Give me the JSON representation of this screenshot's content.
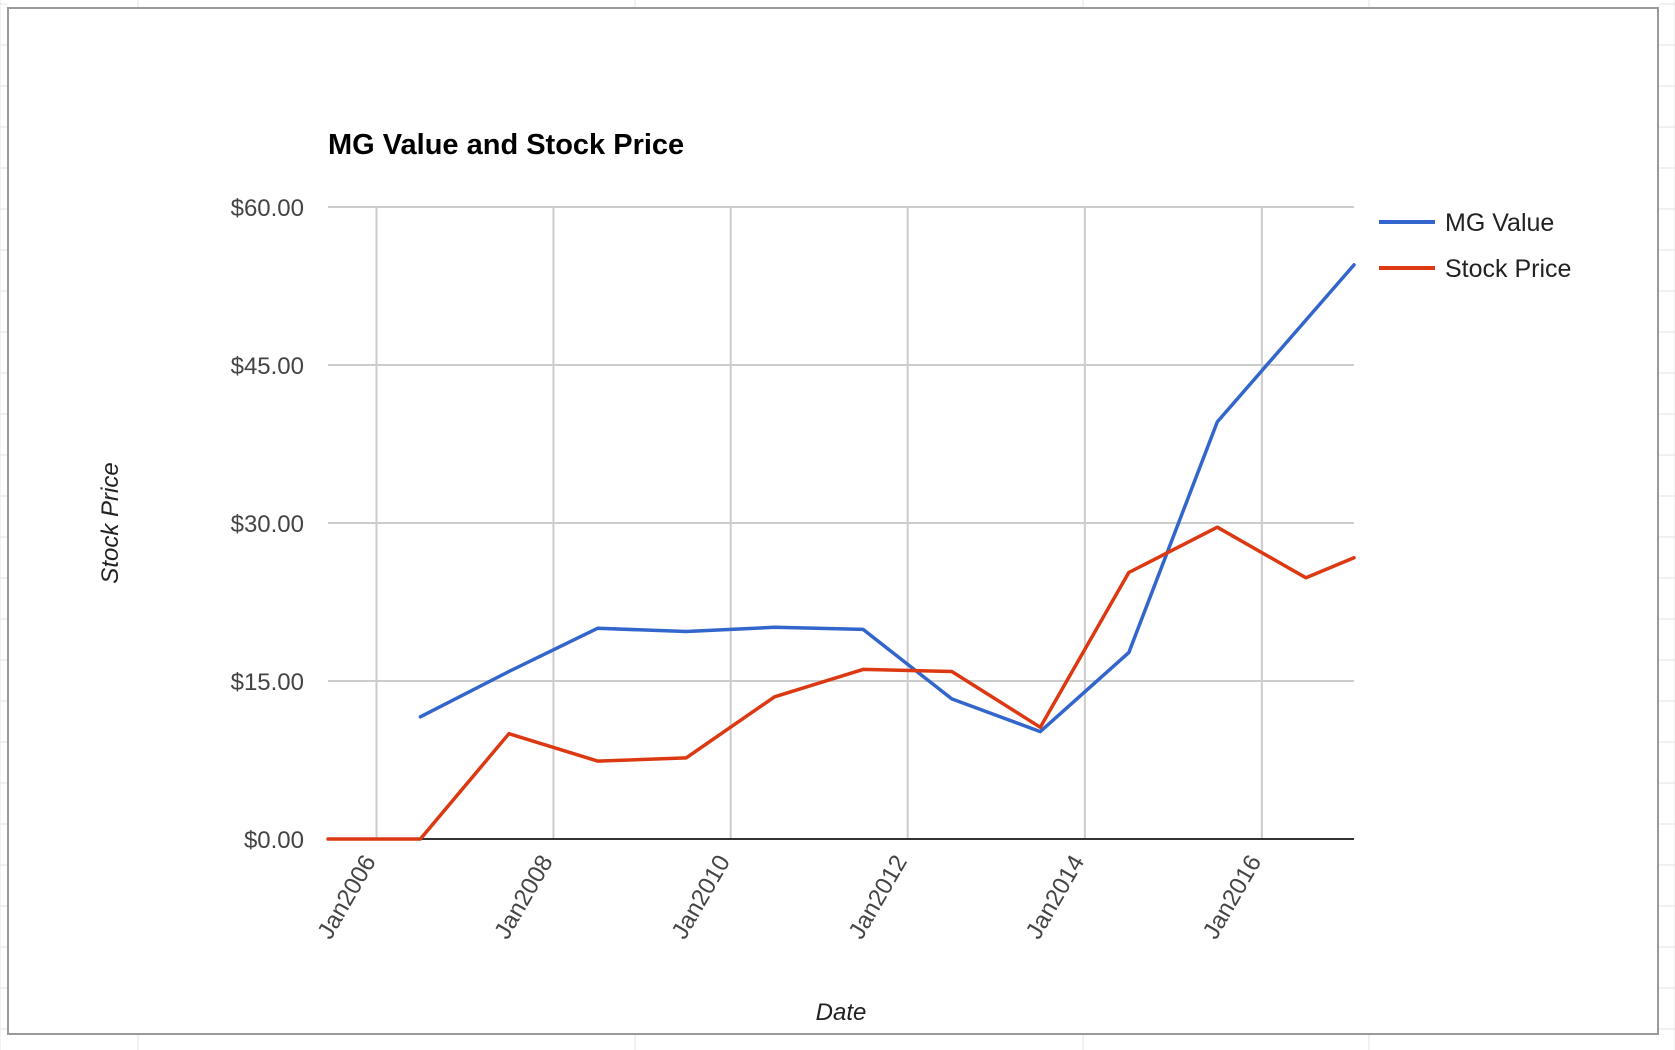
{
  "chart_data": {
    "type": "line",
    "title": "MG Value and Stock Price",
    "xlabel": "Date",
    "ylabel": "Stock Price",
    "x_ticks": [
      "Jan2006",
      "Jan2008",
      "Jan2010",
      "Jan2012",
      "Jan2014",
      "Jan2016"
    ],
    "y_ticks": [
      "$0.00",
      "$15.00",
      "$30.00",
      "$45.00",
      "$60.00"
    ],
    "ylim": [
      0,
      60
    ],
    "xlim": [
      "2005-06-15",
      "2017-01-15"
    ],
    "grid": true,
    "legend_position": "right",
    "series": [
      {
        "name": "MG Value",
        "color": "#3366cc",
        "points": [
          {
            "x": "2006-07-01",
            "y": 11.6
          },
          {
            "x": "2007-07-01",
            "y": 15.9
          },
          {
            "x": "2008-07-01",
            "y": 20.0
          },
          {
            "x": "2009-07-01",
            "y": 19.7
          },
          {
            "x": "2010-07-01",
            "y": 20.1
          },
          {
            "x": "2011-07-01",
            "y": 19.9
          },
          {
            "x": "2012-07-01",
            "y": 13.3
          },
          {
            "x": "2013-07-01",
            "y": 10.2
          },
          {
            "x": "2014-07-01",
            "y": 17.7
          },
          {
            "x": "2015-07-01",
            "y": 39.6
          },
          {
            "x": "2017-01-15",
            "y": 54.5
          }
        ]
      },
      {
        "name": "Stock Price",
        "color": "#dc3912",
        "points": [
          {
            "x": "2005-06-15",
            "y": 0.0
          },
          {
            "x": "2006-07-01",
            "y": 0.0
          },
          {
            "x": "2007-07-01",
            "y": 10.0
          },
          {
            "x": "2008-07-01",
            "y": 7.4
          },
          {
            "x": "2009-07-01",
            "y": 7.7
          },
          {
            "x": "2010-07-01",
            "y": 13.5
          },
          {
            "x": "2011-07-01",
            "y": 16.1
          },
          {
            "x": "2012-07-01",
            "y": 15.9
          },
          {
            "x": "2013-07-01",
            "y": 10.6
          },
          {
            "x": "2014-07-01",
            "y": 25.3
          },
          {
            "x": "2015-07-01",
            "y": 29.6
          },
          {
            "x": "2016-07-01",
            "y": 24.8
          },
          {
            "x": "2017-01-15",
            "y": 26.7
          }
        ]
      }
    ]
  }
}
